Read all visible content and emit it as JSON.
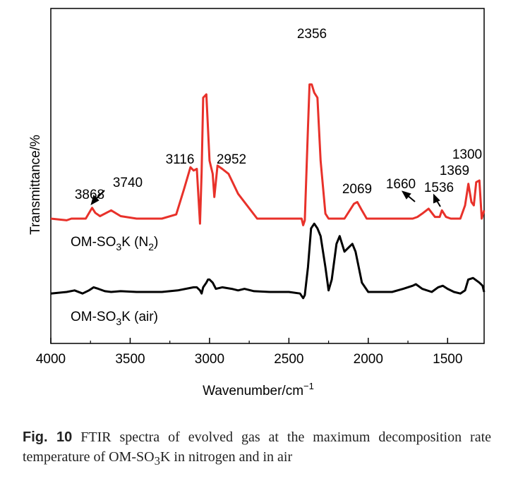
{
  "chart_data": {
    "type": "line",
    "xlabel": "Wavenumber/cm",
    "xlabel_sup": "−1",
    "ylabel": "Transmittance/%",
    "xlim": [
      4000,
      1270
    ],
    "x_reversed": true,
    "x_ticks": [
      4000,
      3500,
      3000,
      2500,
      2000,
      1500
    ],
    "y_ticks_shown": false,
    "grid": false,
    "series": [
      {
        "name": "OM-SO3K (N2)",
        "label_main": "OM-SO",
        "label_sub": "3",
        "label_mid": "K (N",
        "label_sub2": "2",
        "label_end": ")",
        "color": "#e8312a",
        "x": [
          4000,
          3900,
          3870,
          3780,
          3740,
          3720,
          3690,
          3620,
          3560,
          3460,
          3300,
          3210,
          3160,
          3120,
          3100,
          3080,
          3060,
          3050,
          3040,
          3020,
          3000,
          2980,
          2970,
          2950,
          2920,
          2880,
          2820,
          2700,
          2600,
          2480,
          2420,
          2410,
          2400,
          2380,
          2370,
          2356,
          2340,
          2320,
          2300,
          2270,
          2250,
          2220,
          2150,
          2090,
          2069,
          2040,
          2010,
          1900,
          1800,
          1720,
          1690,
          1660,
          1620,
          1580,
          1550,
          1536,
          1510,
          1480,
          1420,
          1390,
          1369,
          1350,
          1335,
          1320,
          1300,
          1285,
          1270
        ],
        "y": [
          0.15,
          0.14,
          0.15,
          0.15,
          0.215,
          0.185,
          0.165,
          0.2,
          0.165,
          0.15,
          0.15,
          0.175,
          0.33,
          0.46,
          0.44,
          0.45,
          0.12,
          0.43,
          0.88,
          0.9,
          0.5,
          0.42,
          0.28,
          0.47,
          0.45,
          0.42,
          0.3,
          0.15,
          0.15,
          0.15,
          0.15,
          0.11,
          0.14,
          0.7,
          0.96,
          0.96,
          0.91,
          0.88,
          0.5,
          0.18,
          0.15,
          0.15,
          0.15,
          0.24,
          0.25,
          0.2,
          0.15,
          0.15,
          0.15,
          0.15,
          0.16,
          0.18,
          0.21,
          0.16,
          0.16,
          0.2,
          0.16,
          0.15,
          0.15,
          0.23,
          0.36,
          0.25,
          0.23,
          0.37,
          0.38,
          0.15,
          0.2
        ]
      },
      {
        "name": "OM-SO3K (air)",
        "label_main": "OM-SO",
        "label_sub": "3",
        "label_mid": "K (air)",
        "label_sub2": "",
        "label_end": "",
        "color": "#000000",
        "x": [
          4000,
          3900,
          3850,
          3800,
          3760,
          3730,
          3700,
          3660,
          3620,
          3560,
          3460,
          3300,
          3200,
          3100,
          3080,
          3060,
          3050,
          3040,
          3020,
          3010,
          3000,
          2980,
          2960,
          2920,
          2860,
          2820,
          2780,
          2720,
          2620,
          2500,
          2430,
          2410,
          2400,
          2380,
          2360,
          2340,
          2320,
          2300,
          2270,
          2250,
          2230,
          2200,
          2180,
          2150,
          2120,
          2100,
          2080,
          2060,
          2040,
          2000,
          1950,
          1850,
          1780,
          1720,
          1700,
          1660,
          1600,
          1560,
          1530,
          1500,
          1460,
          1420,
          1390,
          1370,
          1340,
          1300,
          1280,
          1270
        ],
        "y": [
          -0.47,
          -0.46,
          -0.45,
          -0.47,
          -0.45,
          -0.43,
          -0.44,
          -0.455,
          -0.46,
          -0.455,
          -0.46,
          -0.46,
          -0.45,
          -0.43,
          -0.43,
          -0.45,
          -0.47,
          -0.43,
          -0.4,
          -0.38,
          -0.38,
          -0.4,
          -0.44,
          -0.43,
          -0.44,
          -0.45,
          -0.44,
          -0.455,
          -0.46,
          -0.46,
          -0.47,
          -0.5,
          -0.48,
          -0.3,
          -0.05,
          -0.02,
          -0.05,
          -0.1,
          -0.3,
          -0.45,
          -0.38,
          -0.15,
          -0.1,
          -0.2,
          -0.17,
          -0.15,
          -0.2,
          -0.3,
          -0.4,
          -0.46,
          -0.46,
          -0.46,
          -0.44,
          -0.42,
          -0.41,
          -0.44,
          -0.46,
          -0.43,
          -0.42,
          -0.44,
          -0.46,
          -0.47,
          -0.45,
          -0.38,
          -0.37,
          -0.4,
          -0.42,
          -0.46
        ]
      }
    ],
    "annotations": [
      {
        "text": "3868",
        "x": 3868
      },
      {
        "text": "3740",
        "x": 3740
      },
      {
        "text": "3116",
        "x": 3116
      },
      {
        "text": "2952",
        "x": 2952
      },
      {
        "text": "2356",
        "x": 2356
      },
      {
        "text": "2069",
        "x": 2069
      },
      {
        "text": "1660",
        "x": 1660
      },
      {
        "text": "1536",
        "x": 1536
      },
      {
        "text": "1369",
        "x": 1369
      },
      {
        "text": "1300",
        "x": 1300
      }
    ]
  },
  "caption": {
    "label": "Fig. 10",
    "text_before_sub": "FTIR spectra of evolved gas at the maximum decomposition rate temperature of OM-SO",
    "sub": "3",
    "text_after_sub": "K in nitrogen and in air"
  }
}
